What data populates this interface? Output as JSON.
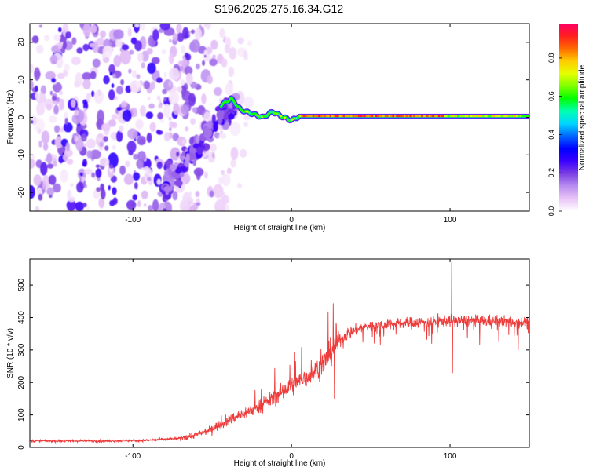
{
  "title": "S196.2025.275.16.34.G12",
  "chart_data": [
    {
      "type": "heatmap",
      "xlabel": "Height of straight line (km)",
      "ylabel": "Frequency (Hz)",
      "xlim": [
        -165,
        150
      ],
      "ylim": [
        -25,
        25
      ],
      "xticks": [
        -100,
        0,
        100
      ],
      "yticks": [
        -20,
        -10,
        0,
        10,
        20
      ],
      "colorbar": {
        "label": "Normalized spectral amplitude",
        "ticks": [
          "0.0",
          "0.2",
          "0.4",
          "0.6",
          "0.8"
        ],
        "range": [
          0,
          0.98
        ],
        "colors": [
          "#ffffff",
          "#e9c4f7",
          "#b88ef0",
          "#7d3fe3",
          "#3b00ff",
          "#0000ff",
          "#0066ff",
          "#00d5ff",
          "#00ffb0",
          "#00ff00",
          "#7fff00",
          "#e5ff00",
          "#ffcc00",
          "#ff6a00",
          "#ff1f1f",
          "#ff0066"
        ]
      },
      "features": {
        "noise_region_x": [
          -165,
          -40
        ],
        "carrier_start_x": -40,
        "carrier_freq_hz": 0,
        "carrier_peak_amplitude": 0.95,
        "carrier_wiggle_points": [
          [
            -45,
            3
          ],
          [
            -38,
            5
          ],
          [
            -32,
            2
          ],
          [
            -25,
            1
          ],
          [
            -18,
            0
          ],
          [
            -12,
            1.5
          ],
          [
            -5,
            0
          ],
          [
            0,
            -0.8
          ],
          [
            5,
            0.3
          ],
          [
            10,
            0.3
          ],
          [
            150,
            0.3
          ]
        ]
      }
    },
    {
      "type": "line",
      "xlabel": "Height of straight line (km)",
      "ylabel": "SNR (10 * v/v)",
      "xlim": [
        -165,
        150
      ],
      "ylim": [
        0,
        580
      ],
      "xticks": [
        -100,
        0,
        100
      ],
      "yticks": [
        0,
        100,
        200,
        300,
        400,
        500
      ],
      "color": "#ee3b3b",
      "trend": {
        "x": [
          -165,
          -120,
          -90,
          -70,
          -55,
          -45,
          -35,
          -25,
          -15,
          -5,
          5,
          15,
          22,
          28,
          35,
          45,
          60,
          80,
          100,
          120,
          150
        ],
        "y": [
          20,
          20,
          22,
          28,
          45,
          70,
          95,
          115,
          140,
          175,
          205,
          235,
          270,
          320,
          350,
          370,
          380,
          385,
          390,
          390,
          385
        ]
      },
      "spikes": [
        {
          "x": 101,
          "y": 570
        },
        {
          "x": 101.5,
          "y": 230
        },
        {
          "x": 27,
          "y": 150
        },
        {
          "x": 143,
          "y": 300
        }
      ]
    }
  ]
}
